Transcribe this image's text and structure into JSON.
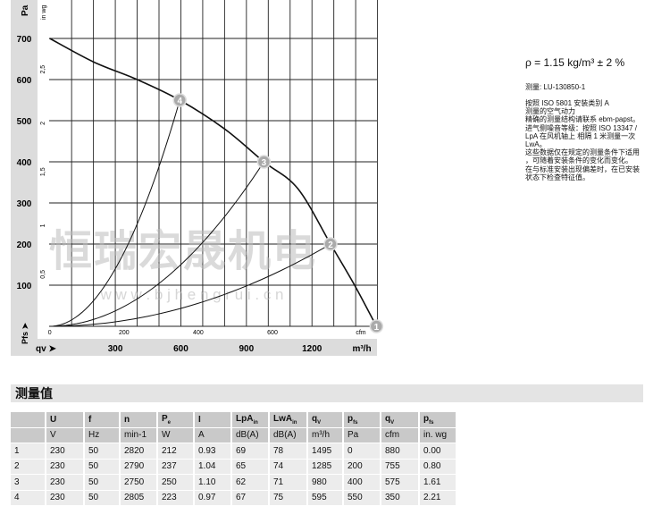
{
  "chart_data": {
    "type": "line",
    "xlabel": "qv",
    "x_units": [
      "m³/h",
      "cfm"
    ],
    "ylabel": "Pfs",
    "y_units": [
      "Pa",
      "in wg"
    ],
    "xlim": [
      0,
      1500
    ],
    "ylim": [
      0,
      700
    ],
    "x_ticks_m3h": [
      "300",
      "600",
      "900",
      "1200"
    ],
    "x_ticks_cfm": [
      "0",
      "200",
      "400",
      "600"
    ],
    "y_ticks_pa": [
      "100",
      "200",
      "300",
      "400",
      "500",
      "600",
      "700"
    ],
    "y_ticks_inwg": [
      "0,5",
      "1",
      "1,5",
      "2",
      "2,5"
    ],
    "grid": true,
    "fan_curve": [
      [
        0,
        700
      ],
      [
        200,
        643
      ],
      [
        400,
        600
      ],
      [
        595,
        550
      ],
      [
        800,
        480
      ],
      [
        980,
        400
      ],
      [
        1135,
        335
      ],
      [
        1285,
        200
      ],
      [
        1395,
        100
      ],
      [
        1495,
        0
      ]
    ],
    "operating_points": [
      {
        "label": "1",
        "q": 1495,
        "p": 0
      },
      {
        "label": "2",
        "q": 1285,
        "p": 200
      },
      {
        "label": "3",
        "q": 980,
        "p": 400
      },
      {
        "label": "4",
        "q": 595,
        "p": 550
      }
    ],
    "system_curves": "parabolic from origin through points 2, 3, 4"
  },
  "watermark": {
    "cn": "恒瑞宏晟机电",
    "url": "w w w . b j h e n g r u i . c n"
  },
  "info": {
    "density": "ρ = 1.15 kg/m³ ± 2 %",
    "measurement": "测量: LU-130850-1",
    "notes": [
      "按照 ISO 5801 安装类别 A",
      "测量的空气动力",
      "精确的测量结构请联系 ebm-papst。",
      "进气侧噪音等级：按照 ISO 13347 /",
      "LpA 在风机轴上 相隔 1 米测量一次",
      "LwA。",
      "这些数据仅在规定的测量条件下适用",
      "，可随着安装条件的变化而变化。",
      "在与标准安装出现偏差时，在已安装",
      "状态下检查特征值。"
    ]
  },
  "table": {
    "title": "测量值",
    "headers": [
      "",
      "U",
      "f",
      "n",
      "P",
      "I",
      "LpA",
      "LwA",
      "q",
      "p",
      "q",
      "p"
    ],
    "header_subs": [
      "",
      "",
      "",
      "",
      "e",
      "",
      "in",
      "in",
      "V",
      "fs",
      "V",
      "fs"
    ],
    "units": [
      "",
      "V",
      "Hz",
      "min-1",
      "W",
      "A",
      "dB(A)",
      "dB(A)",
      "m³/h",
      "Pa",
      "cfm",
      "in. wg"
    ],
    "rows": [
      [
        "1",
        "230",
        "50",
        "2820",
        "212",
        "0.93",
        "69",
        "78",
        "1495",
        "0",
        "880",
        "0.00"
      ],
      [
        "2",
        "230",
        "50",
        "2790",
        "237",
        "1.04",
        "65",
        "74",
        "1285",
        "200",
        "755",
        "0.80"
      ],
      [
        "3",
        "230",
        "50",
        "2750",
        "250",
        "1.10",
        "62",
        "71",
        "980",
        "400",
        "575",
        "1.61"
      ],
      [
        "4",
        "230",
        "50",
        "2805",
        "223",
        "0.97",
        "67",
        "75",
        "595",
        "550",
        "350",
        "2.21"
      ]
    ]
  }
}
